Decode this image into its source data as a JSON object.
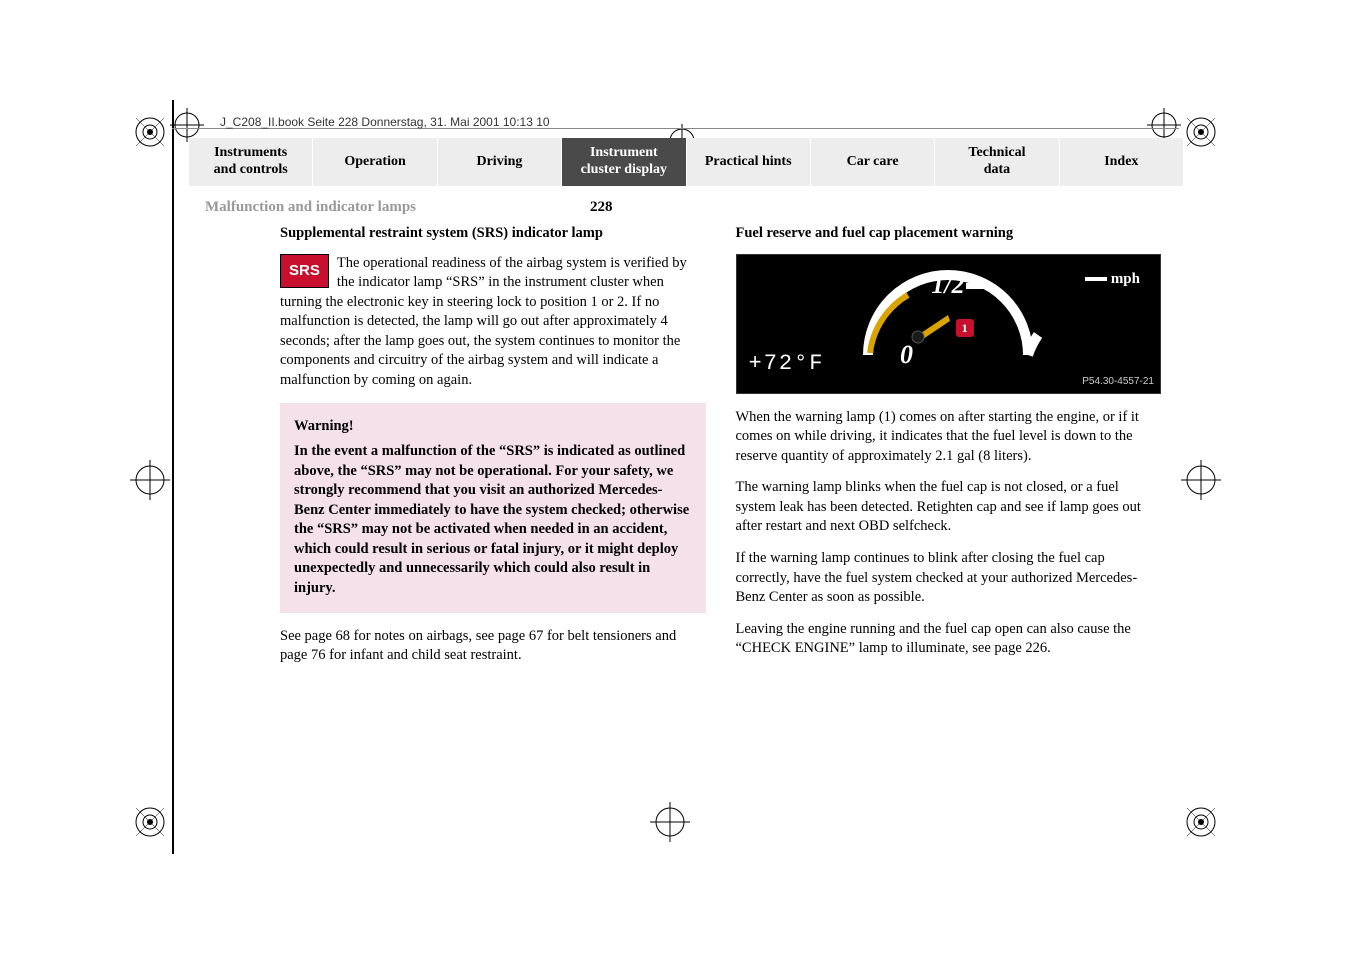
{
  "meta": {
    "header_note": "J_C208_II.book  Seite 228  Donnerstag, 31. Mai 2001  10:13 10"
  },
  "nav": {
    "tabs": [
      {
        "label": "Instruments\nand controls",
        "cls": "light",
        "name": "tab-instruments"
      },
      {
        "label": "Operation",
        "cls": "light",
        "name": "tab-operation"
      },
      {
        "label": "Driving",
        "cls": "light",
        "name": "tab-driving"
      },
      {
        "label": "Instrument\ncluster display",
        "cls": "dark",
        "name": "tab-cluster"
      },
      {
        "label": "Practical hints",
        "cls": "light",
        "name": "tab-hints"
      },
      {
        "label": "Car care",
        "cls": "light",
        "name": "tab-carcare"
      },
      {
        "label": "Technical\ndata",
        "cls": "light",
        "name": "tab-techdata"
      },
      {
        "label": "Index",
        "cls": "light",
        "name": "tab-index"
      }
    ]
  },
  "breadcrumb": "Malfunction and indicator lamps",
  "page_number": "228",
  "left": {
    "title": "Supplemental restraint system (SRS) indicator lamp",
    "srs_badge": "SRS",
    "p1": "The operational readiness of the airbag system is verified by the indicator lamp “SRS” in the instrument cluster when turning the electronic key in steering lock to position 1 or 2. If no malfunction is detected, the lamp will go out after approximately 4 seconds; after the lamp goes out, the system continues to monitor the components and circuitry of the airbag system and will indicate a malfunction by coming on again.",
    "warning_title": "Warning!",
    "warning_body": "In the event a malfunction of the “SRS” is indicated as outlined above, the “SRS” may not be operational. For your safety, we strongly recommend that you visit an authorized Mercedes-Benz Center immediately to have the system checked; otherwise the “SRS” may not be activated when needed in an accident, which could result in serious or fatal injury, or it might deploy unexpectedly and unnecessarily which could also result in injury.",
    "p2": "See page 68 for notes on airbags, see page 67 for belt tensioners and page 76 for infant and child seat restraint."
  },
  "right": {
    "title": "Fuel reserve and fuel cap placement warning",
    "gauge": {
      "half": "1/2",
      "zero": "0",
      "temp": "+72°F",
      "mph": "mph",
      "callout": "1",
      "ref": "P54.30-4557-21",
      "colors": {
        "bg": "#000000",
        "fg": "#ffffff",
        "warn": "#d9a400",
        "callout_bg": "#c8102e"
      }
    },
    "p1": "When the warning lamp (1) comes on after starting the engine, or if it comes on while driving, it indicates that the fuel level is down to the reserve quantity of approximately 2.1 gal (8 liters).",
    "p2": "The warning lamp blinks when the fuel cap is not closed, or a fuel system leak has been detected. Retighten cap and see if lamp goes out after restart and next OBD selfcheck.",
    "p3": "If the warning lamp continues to blink after closing the fuel cap correctly, have the fuel system checked at your authorized Mercedes-Benz Center as soon as possible.",
    "p4": "Leaving the engine running and the fuel cap open can also cause the “CHECK ENGINE” lamp to illuminate, see page 226."
  }
}
